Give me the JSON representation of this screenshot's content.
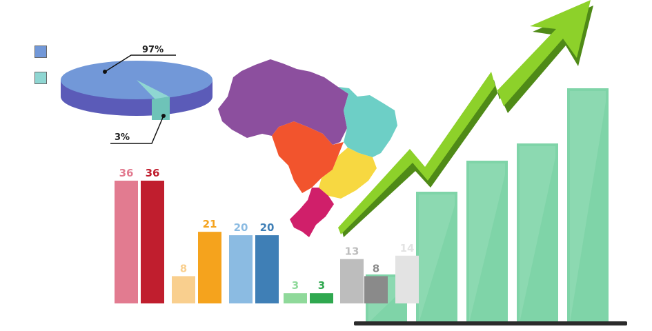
{
  "colors": {
    "pie_main_top": "#7298d8",
    "pie_main_side": "#5b5bb8",
    "pie_slice_top": "#8fd6d2",
    "pie_slice_side": "#6ec3b8",
    "region_north": "#8c4f9e",
    "region_northeast": "#6dcfc6",
    "region_midwest": "#f2542d",
    "region_southeast": "#f7d841",
    "region_south": "#d01f6a",
    "arrow_light": "#8dd12a",
    "arrow_dark": "#4f8a17",
    "growth_bar": "#7fd4a8",
    "growth_bar_light": "#a6e3c2",
    "baseline": "#2b2b2b"
  },
  "chart_data": [
    {
      "type": "pie",
      "title": "",
      "values": [
        97,
        3
      ],
      "labels": [
        "97%",
        "3%"
      ],
      "legend": "left",
      "colors": [
        "#7298d8",
        "#8fd6d2"
      ]
    },
    {
      "type": "bar",
      "title": "",
      "values": [
        36,
        36,
        8,
        21,
        20,
        20,
        3,
        3,
        13,
        8,
        14
      ],
      "labels": [
        "36",
        "36",
        "8",
        "21",
        "20",
        "20",
        "3",
        "3",
        "13",
        "8",
        "14"
      ],
      "colors": [
        "#e27b90",
        "#c01e2e",
        "#f9cf8e",
        "#f5a31d",
        "#8bbbe2",
        "#3f7fb6",
        "#8fd99a",
        "#2fa84f",
        "#bdbdbd",
        "#8a8a8a",
        "#e3e3e3"
      ],
      "ylim": [
        0,
        36
      ]
    },
    {
      "type": "bar",
      "title": "",
      "values": [
        1,
        2,
        3,
        4,
        5
      ],
      "note_trend": "rising",
      "ylim": [
        0,
        5
      ]
    }
  ]
}
